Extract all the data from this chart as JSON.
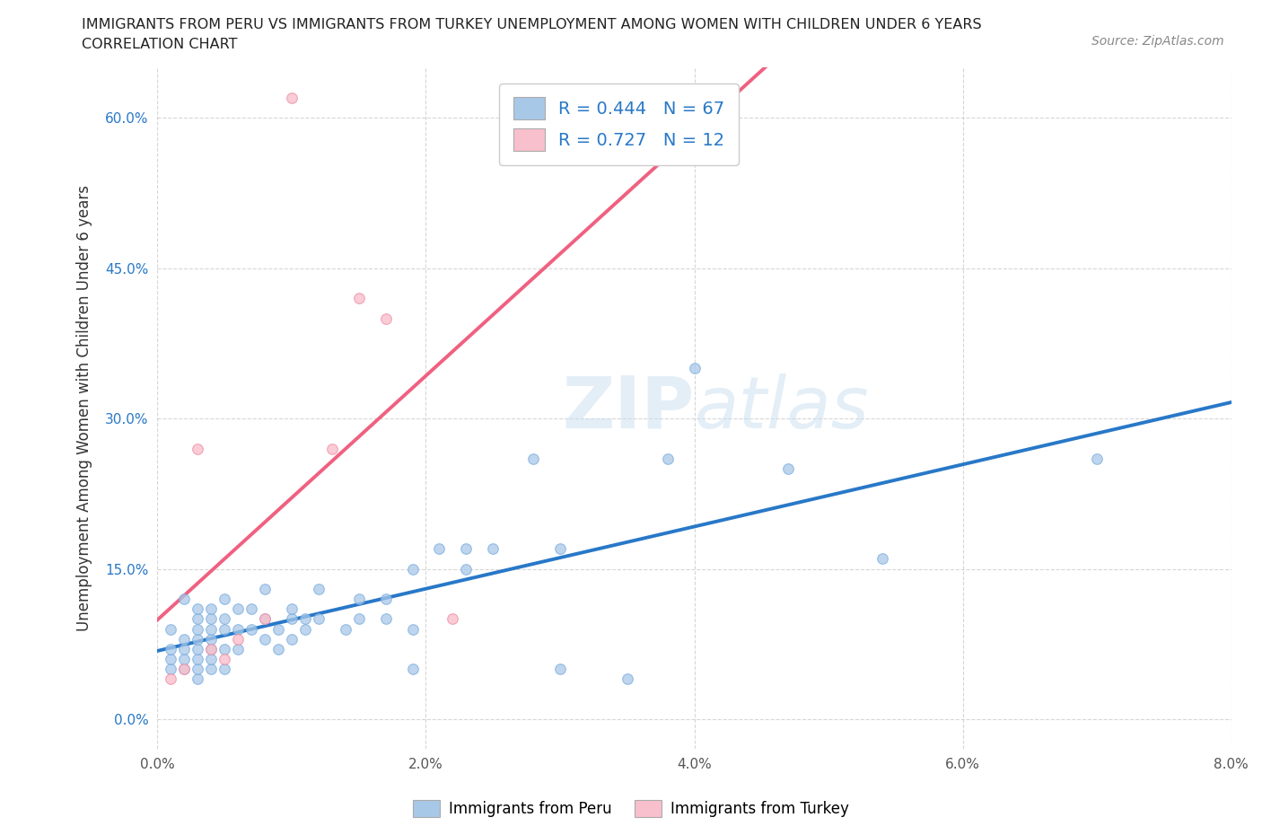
{
  "title_line1": "IMMIGRANTS FROM PERU VS IMMIGRANTS FROM TURKEY UNEMPLOYMENT AMONG WOMEN WITH CHILDREN UNDER 6 YEARS",
  "title_line2": "CORRELATION CHART",
  "source_text": "Source: ZipAtlas.com",
  "ylabel": "Unemployment Among Women with Children Under 6 years",
  "xlim": [
    0.0,
    0.08
  ],
  "ylim": [
    -0.03,
    0.65
  ],
  "yticks": [
    0.0,
    0.15,
    0.3,
    0.45,
    0.6
  ],
  "ytick_labels": [
    "0.0%",
    "15.0%",
    "30.0%",
    "45.0%",
    "60.0%"
  ],
  "xticks": [
    0.0,
    0.02,
    0.04,
    0.06,
    0.08
  ],
  "xtick_labels": [
    "0.0%",
    "2.0%",
    "4.0%",
    "6.0%",
    "8.0%"
  ],
  "peru_color": "#a8c8e8",
  "peru_edge_color": "#7aace0",
  "turkey_color": "#f8c0cc",
  "turkey_edge_color": "#f090a8",
  "trendline_peru_color": "#2878c8",
  "trendline_turkey_color": "#f06080",
  "peru_R": 0.444,
  "peru_N": 67,
  "turkey_R": 0.727,
  "turkey_N": 12,
  "watermark": "ZIPatlas",
  "peru_scatter_x": [
    0.001,
    0.001,
    0.001,
    0.001,
    0.002,
    0.002,
    0.002,
    0.002,
    0.002,
    0.003,
    0.003,
    0.003,
    0.003,
    0.003,
    0.003,
    0.003,
    0.003,
    0.004,
    0.004,
    0.004,
    0.004,
    0.004,
    0.004,
    0.004,
    0.005,
    0.005,
    0.005,
    0.005,
    0.005,
    0.006,
    0.006,
    0.006,
    0.007,
    0.007,
    0.008,
    0.008,
    0.008,
    0.009,
    0.009,
    0.01,
    0.01,
    0.01,
    0.011,
    0.011,
    0.012,
    0.012,
    0.014,
    0.015,
    0.015,
    0.017,
    0.017,
    0.019,
    0.019,
    0.019,
    0.021,
    0.023,
    0.023,
    0.025,
    0.028,
    0.03,
    0.03,
    0.035,
    0.038,
    0.04,
    0.047,
    0.054,
    0.07
  ],
  "peru_scatter_y": [
    0.05,
    0.06,
    0.07,
    0.09,
    0.05,
    0.06,
    0.07,
    0.08,
    0.12,
    0.04,
    0.05,
    0.06,
    0.07,
    0.08,
    0.09,
    0.1,
    0.11,
    0.05,
    0.06,
    0.07,
    0.08,
    0.09,
    0.1,
    0.11,
    0.05,
    0.07,
    0.09,
    0.1,
    0.12,
    0.07,
    0.09,
    0.11,
    0.09,
    0.11,
    0.08,
    0.1,
    0.13,
    0.07,
    0.09,
    0.08,
    0.1,
    0.11,
    0.09,
    0.1,
    0.1,
    0.13,
    0.09,
    0.1,
    0.12,
    0.1,
    0.12,
    0.05,
    0.09,
    0.15,
    0.17,
    0.15,
    0.17,
    0.17,
    0.26,
    0.05,
    0.17,
    0.04,
    0.26,
    0.35,
    0.25,
    0.16,
    0.26
  ],
  "turkey_scatter_x": [
    0.001,
    0.002,
    0.003,
    0.004,
    0.005,
    0.006,
    0.008,
    0.01,
    0.013,
    0.015,
    0.017,
    0.022
  ],
  "turkey_scatter_y": [
    0.04,
    0.05,
    0.27,
    0.07,
    0.06,
    0.08,
    0.1,
    0.62,
    0.27,
    0.42,
    0.4,
    0.1
  ]
}
